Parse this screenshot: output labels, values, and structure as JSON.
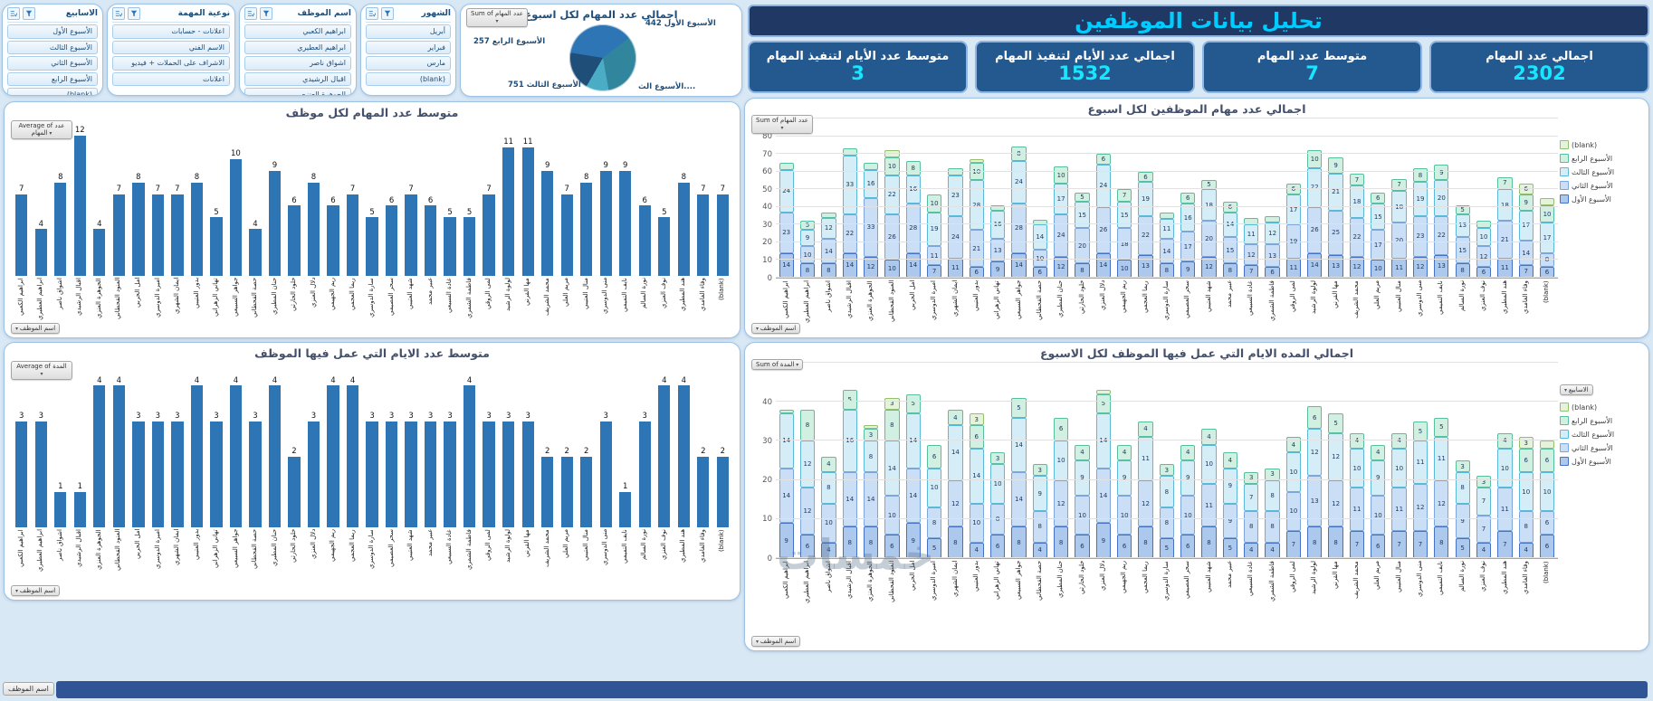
{
  "page": {
    "background": "#d9e8f5",
    "watermark": "خمسات",
    "accent": "#2e75b6"
  },
  "header": {
    "title": "تحليل بيانات الموظفين",
    "kpis": [
      {
        "label": "اجمالي عدد المهام",
        "value": "2302"
      },
      {
        "label": "متوسط عدد المهام",
        "value": "7"
      },
      {
        "label": "اجمالي عدد الأيام لتنفيذ المهام",
        "value": "1532"
      },
      {
        "label": "متوسط عدد الأيام لتنفيذ المهام",
        "value": "3"
      }
    ]
  },
  "slicers": [
    {
      "title": "الأسابيع",
      "items": [
        "الأسبوع الأول",
        "الأسبوع الثالث",
        "الأسبوع الثاني",
        "الأسبوع الرابع",
        "(blank)"
      ]
    },
    {
      "title": "نوعية المهمة",
      "items": [
        "اعلانات - حسابات",
        "الاسم الفني",
        "الاشراف على الحملات + فيديو",
        "اعلانات"
      ]
    },
    {
      "title": "اسم الموظف",
      "items": [
        "ابراهيم الكعبي",
        "ابراهيم العطيري",
        "اشواق ناصر",
        "اقبال الرشيدي",
        "الجوهرة العنزي"
      ]
    },
    {
      "title": "الشهور",
      "items": [
        "أبريل",
        "فبراير",
        "مارس",
        "(blank)"
      ]
    }
  ],
  "employees": [
    "ابراهيم الكعبي",
    "ابراهيم العطيري",
    "اشواق ناصر",
    "اقبال الرشيدي",
    "الجوهرة العنزي",
    "العنود القحطاني",
    "امل الحربي",
    "اميرة الدوسري",
    "ايمان الشهري",
    "بدور العتيبي",
    "تهاني الزهراني",
    "جواهر السبيعي",
    "حصة القحطاني",
    "حنان المطيري",
    "خلود الحارثي",
    "دلال العنزي",
    "ريم الجهيمي",
    "ريما العجمي",
    "سارة الدوسري",
    "سحر العصيمي",
    "شهد العتيبي",
    "عبير محمد",
    "غادة السبيعي",
    "فاطمة الشمري",
    "لمى الروقي",
    "لولوة الرشيد",
    "مها القرني",
    "محمد الشريف",
    "مريم العلي",
    "منال العتيبي",
    "منى الدوسري",
    "نايف التميمي",
    "نورة السالم",
    "نوف العنزي",
    "هند المطيري",
    "وفاء الغامدي",
    "(blank)"
  ],
  "chart_data": [
    {
      "id": "pie-tasks-per-week",
      "type": "pie",
      "title": "اجمالي عدد المهام لكل اسبوع",
      "field_button": "Sum of عدد المهام",
      "labels": [
        "الأسبوع الأول",
        "الأسبوع الثاني",
        "الأسبوع الثالث",
        "الأسبوع الرابع"
      ],
      "values": [
        442,
        852,
        751,
        257
      ],
      "colors": [
        "#1f4e79",
        "#2e75b6",
        "#31859c",
        "#4bacc6"
      ],
      "callouts": [
        "الأسبوع الأول 442",
        "الأسبوع الرابع 257",
        "الأسبوع الثالث 751",
        "....الأسبوع الث"
      ]
    },
    {
      "id": "avg-tasks-per-employee",
      "type": "bar",
      "title": "متوسط عدد المهام لكل موظف",
      "field_button": "Average of عدد المهام",
      "axis_button": "اسم الموظف",
      "categories_ref": "employees",
      "bar_color": "#2e75b6",
      "xlabel": "",
      "ylabel": "",
      "ylim": [
        0,
        13
      ],
      "values": [
        7,
        4,
        8,
        12,
        4,
        7,
        8,
        7,
        7,
        8,
        5,
        10,
        4,
        9,
        6,
        8,
        6,
        7,
        5,
        6,
        7,
        6,
        5,
        5,
        7,
        11,
        11,
        9,
        7,
        8,
        9,
        9,
        6,
        5,
        8,
        7,
        7
      ]
    },
    {
      "id": "tasks-per-employee-by-week",
      "type": "stacked-bar",
      "title": "اجمالي عدد مهام الموظفين لكل اسبوع",
      "field_button": "Sum of عدد المهام",
      "axis_button": "اسم الموظف",
      "categories_ref": "employees",
      "ylim": [
        0,
        90
      ],
      "ytick": 10,
      "series": [
        {
          "name": "الأسبوع الأول",
          "fill": "#adc8ed",
          "border": "#4472c4"
        },
        {
          "name": "الأسبوع الثاني",
          "fill": "#cadef5",
          "border": "#7da7dc"
        },
        {
          "name": "الأسبوع الثالث",
          "fill": "#d4edf7",
          "border": "#5bb8d9"
        },
        {
          "name": "الأسبوع الرابع",
          "fill": "#d2f0e2",
          "border": "#57bfa0"
        },
        {
          "name": "(blank)",
          "fill": "#e4f3da",
          "border": "#94c06e"
        }
      ],
      "legend_order": [
        "(blank)",
        "الأسبوع الرابع",
        "الأسبوع الثالث",
        "الأسبوع الثاني",
        "الأسبوع الأول"
      ],
      "rows": [
        [
          14,
          23,
          24,
          4,
          0
        ],
        [
          8,
          10,
          9,
          5,
          0
        ],
        [
          8,
          14,
          12,
          3,
          0
        ],
        [
          14,
          22,
          33,
          4,
          0
        ],
        [
          12,
          33,
          16,
          4,
          0
        ],
        [
          10,
          26,
          22,
          10,
          4
        ],
        [
          14,
          28,
          16,
          8,
          0
        ],
        [
          7,
          11,
          19,
          10,
          0
        ],
        [
          11,
          24,
          23,
          4,
          0
        ],
        [
          6,
          21,
          28,
          10,
          2
        ],
        [
          9,
          13,
          16,
          3,
          0
        ],
        [
          14,
          28,
          24,
          8,
          0
        ],
        [
          6,
          10,
          14,
          3,
          0
        ],
        [
          12,
          24,
          17,
          10,
          0
        ],
        [
          8,
          20,
          15,
          5,
          0
        ],
        [
          14,
          26,
          24,
          6,
          0
        ],
        [
          10,
          18,
          15,
          7,
          0
        ],
        [
          13,
          22,
          19,
          6,
          0
        ],
        [
          8,
          14,
          11,
          4,
          0
        ],
        [
          9,
          17,
          16,
          6,
          0
        ],
        [
          12,
          20,
          18,
          5,
          0
        ],
        [
          8,
          15,
          14,
          6,
          0
        ],
        [
          7,
          12,
          11,
          4,
          0
        ],
        [
          6,
          13,
          12,
          4,
          0
        ],
        [
          11,
          19,
          17,
          6,
          0
        ],
        [
          14,
          26,
          22,
          10,
          0
        ],
        [
          13,
          25,
          21,
          9,
          0
        ],
        [
          12,
          22,
          18,
          7,
          0
        ],
        [
          10,
          17,
          15,
          6,
          0
        ],
        [
          11,
          20,
          18,
          7,
          0
        ],
        [
          12,
          23,
          19,
          8,
          0
        ],
        [
          13,
          22,
          20,
          9,
          0
        ],
        [
          8,
          15,
          13,
          5,
          0
        ],
        [
          6,
          12,
          10,
          4,
          0
        ],
        [
          11,
          21,
          18,
          7,
          0
        ],
        [
          7,
          14,
          17,
          9,
          6
        ],
        [
          6,
          8,
          17,
          10,
          4
        ]
      ]
    },
    {
      "id": "avg-days-per-employee",
      "type": "bar",
      "title": "متوسط عدد الايام التي عمل فيها الموظف",
      "field_button": "Average of المدة",
      "axis_button": "اسم الموظف",
      "categories_ref": "employees",
      "bar_color": "#2e75b6",
      "xlabel": "",
      "ylabel": "",
      "ylim": [
        0,
        4.6
      ],
      "values": [
        3,
        3,
        1,
        1,
        4,
        4,
        3,
        3,
        3,
        4,
        3,
        4,
        3,
        4,
        2,
        3,
        4,
        4,
        3,
        3,
        3,
        3,
        3,
        4,
        3,
        3,
        3,
        2,
        2,
        2,
        3,
        1,
        3,
        4,
        4,
        2,
        2
      ]
    },
    {
      "id": "days-per-employee-by-week",
      "type": "stacked-bar",
      "title": "اجمالي المده الايام التي عمل فيها الموظف لكل الاسبوع",
      "field_button": "Sum of المدة",
      "axis_button": "اسم الموظف",
      "legend_button": "الاسابيع",
      "categories_ref": "employees",
      "ylim": [
        0,
        50
      ],
      "ytick": 10,
      "series": [
        {
          "name": "الأسبوع الأول",
          "fill": "#adc8ed",
          "border": "#4472c4"
        },
        {
          "name": "الأسبوع الثاني",
          "fill": "#cadef5",
          "border": "#7da7dc"
        },
        {
          "name": "الأسبوع الثالث",
          "fill": "#d4edf7",
          "border": "#5bb8d9"
        },
        {
          "name": "الأسبوع الرابع",
          "fill": "#d2f0e2",
          "border": "#57bfa0"
        },
        {
          "name": "(blank)",
          "fill": "#e4f3da",
          "border": "#94c06e"
        }
      ],
      "legend_order": [
        "(blank)",
        "الأسبوع الرابع",
        "الأسبوع الثالث",
        "الأسبوع الثاني",
        "الأسبوع الأول"
      ],
      "rows": [
        [
          9,
          14,
          14,
          1,
          0
        ],
        [
          6,
          12,
          12,
          8,
          0
        ],
        [
          4,
          10,
          8,
          4,
          0
        ],
        [
          8,
          14,
          16,
          5,
          0
        ],
        [
          8,
          14,
          8,
          3,
          1
        ],
        [
          6,
          10,
          14,
          8,
          3
        ],
        [
          9,
          14,
          14,
          5,
          0
        ],
        [
          5,
          8,
          10,
          6,
          0
        ],
        [
          8,
          12,
          14,
          4,
          0
        ],
        [
          4,
          10,
          14,
          6,
          3
        ],
        [
          6,
          8,
          10,
          3,
          0
        ],
        [
          8,
          14,
          14,
          5,
          0
        ],
        [
          4,
          8,
          9,
          3,
          0
        ],
        [
          8,
          12,
          10,
          6,
          0
        ],
        [
          6,
          10,
          9,
          4,
          0
        ],
        [
          9,
          14,
          14,
          5,
          1
        ],
        [
          6,
          10,
          9,
          4,
          0
        ],
        [
          8,
          12,
          11,
          4,
          0
        ],
        [
          5,
          8,
          8,
          3,
          0
        ],
        [
          6,
          10,
          9,
          4,
          0
        ],
        [
          8,
          11,
          10,
          4,
          0
        ],
        [
          5,
          9,
          9,
          4,
          0
        ],
        [
          4,
          8,
          7,
          3,
          0
        ],
        [
          4,
          8,
          8,
          3,
          0
        ],
        [
          7,
          10,
          10,
          4,
          0
        ],
        [
          8,
          13,
          12,
          6,
          0
        ],
        [
          8,
          12,
          12,
          5,
          0
        ],
        [
          7,
          11,
          10,
          4,
          0
        ],
        [
          6,
          10,
          9,
          4,
          0
        ],
        [
          7,
          11,
          10,
          4,
          0
        ],
        [
          7,
          12,
          11,
          5,
          0
        ],
        [
          8,
          12,
          11,
          5,
          0
        ],
        [
          5,
          9,
          8,
          3,
          0
        ],
        [
          4,
          7,
          7,
          3,
          0
        ],
        [
          7,
          11,
          10,
          4,
          0
        ],
        [
          4,
          8,
          10,
          6,
          3
        ],
        [
          6,
          6,
          10,
          6,
          2
        ]
      ]
    }
  ],
  "footer": {
    "sheet_button": "اسم الموظف"
  }
}
